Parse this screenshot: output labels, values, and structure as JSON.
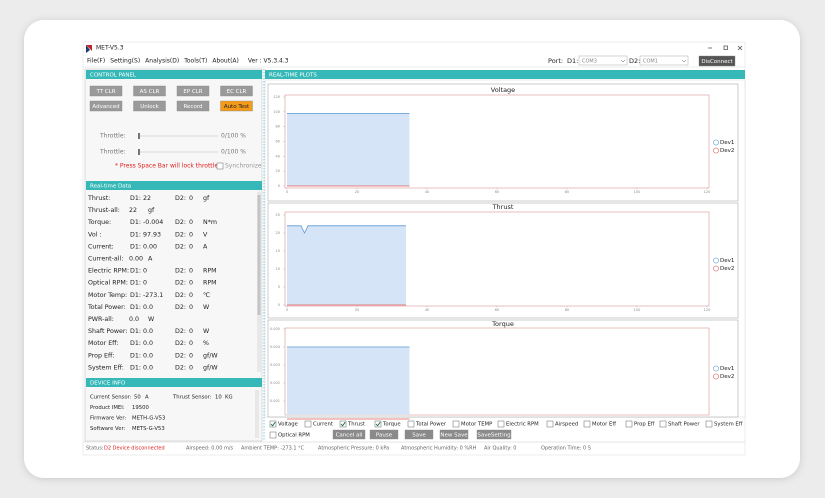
{
  "window": {
    "title": "MET-V5.3"
  },
  "menu": {
    "items": [
      "File(F)",
      "Setting(S)",
      "Analysis(D)",
      "Tools(T)",
      "About(A)"
    ],
    "version": "Ver : V5.3.4.3",
    "port_label": "Port:",
    "d1_label": "D1:",
    "d1_port": "COM3",
    "d2_label": "D2:",
    "d2_port": "COM1",
    "disconnect": "DisConnect"
  },
  "control_panel": {
    "title": "CONTROL PANEL",
    "buttons": [
      {
        "label": "TT CLR"
      },
      {
        "label": "AS CLR"
      },
      {
        "label": "EP CLR"
      },
      {
        "label": "EC CLR"
      },
      {
        "label": "Advanced"
      },
      {
        "label": "Unlock"
      },
      {
        "label": "Record"
      },
      {
        "label": "Auto Test",
        "highlight": true
      }
    ],
    "throttle": [
      {
        "label": "Throttle:",
        "value": "0/100 %"
      },
      {
        "label": "Throttle:",
        "value": "0/100 %"
      }
    ],
    "warning": "* Press Space Bar will lock throttle",
    "sync": "Synchronize"
  },
  "realtime_data": {
    "title": "Real-time Data",
    "rows": [
      [
        "Thrust:",
        "D1:",
        "22",
        "D2:",
        "0",
        "gf"
      ],
      [
        "Thrust-all:",
        "22",
        "gf"
      ],
      [
        "Torque:",
        "D1:",
        "-0.004",
        "D2:",
        "0",
        "N*m"
      ],
      [
        "Vol :",
        "D1:",
        "97.93",
        "D2:",
        "0",
        "V"
      ],
      [
        "Current:",
        "D1:",
        "0.00",
        "D2:",
        "0",
        "A"
      ],
      [
        "Current-all:",
        "0.00",
        "A"
      ],
      [
        "Electric RPM:",
        "D1:",
        "0",
        "D2:",
        "0",
        "RPM"
      ],
      [
        "Optical RPM:",
        "D1:",
        "0",
        "D2:",
        "0",
        "RPM"
      ],
      [
        "Motor Temp:",
        "D1:",
        "-273.1",
        "D2:",
        "0",
        "℃"
      ],
      [
        "Total Power:",
        "D1:",
        "0.0",
        "D2:",
        "0",
        "W"
      ],
      [
        "PWR-all:",
        "0.0",
        "W"
      ],
      [
        "Shaft Power:",
        "D1:",
        "0.0",
        "D2:",
        "0",
        "W"
      ],
      [
        "Motor Eff:",
        "D1:",
        "0.0",
        "D2:",
        "0",
        "%"
      ],
      [
        "Prop Eff:",
        "D1:",
        "0.0",
        "D2:",
        "0",
        "gf/W"
      ],
      [
        "System Eff:",
        "D1:",
        "0.0",
        "D2:",
        "0",
        "gf/W"
      ]
    ]
  },
  "device_info": {
    "title": "DEVICE INFO",
    "rows": [
      [
        "Current Sensor:",
        "50",
        "A",
        "Thrust Sensor:",
        "10",
        "KG"
      ],
      [
        "Product IMEI:",
        "19500"
      ],
      [
        "Firmware Ver:",
        "METH-G-V53"
      ],
      [
        "Software Ver:",
        "METS-G-V53"
      ]
    ]
  },
  "plots": {
    "title": "REAL-TIME PLOTS",
    "charts": [
      {
        "type": "line",
        "title": "Voltage",
        "xlim": [
          0,
          120
        ],
        "xticks": [
          0,
          20,
          40,
          60,
          80,
          100,
          120
        ],
        "ylim": [
          0,
          120
        ],
        "yticks": [
          0,
          20,
          40,
          60,
          80,
          100,
          120
        ],
        "series": [
          {
            "name": "Dev1",
            "color": "#5b9bd5",
            "x": [
              0,
              35
            ],
            "values": [
              97.93,
              97.93
            ]
          },
          {
            "name": "Dev2",
            "color": "#e05a5a",
            "x": [
              0,
              35
            ],
            "values": [
              0,
              0
            ]
          }
        ]
      },
      {
        "type": "line",
        "title": "Thrust",
        "xlim": [
          0,
          120
        ],
        "xticks": [
          0,
          20,
          40,
          60,
          80,
          100,
          120
        ],
        "ylim": [
          0,
          25
        ],
        "yticks": [
          0,
          5,
          10,
          15,
          20,
          25
        ],
        "series": [
          {
            "name": "Dev1",
            "color": "#5b9bd5",
            "x": [
              0,
              4,
              5,
              6,
              34
            ],
            "values": [
              22,
              22,
              20,
              22,
              22
            ]
          },
          {
            "name": "Dev2",
            "color": "#e05a5a",
            "x": [
              0,
              34
            ],
            "values": [
              0,
              0
            ]
          }
        ]
      },
      {
        "type": "line",
        "title": "Torque",
        "xlim": [
          0,
          120
        ],
        "ylim": [
          0,
          0.005
        ],
        "yticks": [
          0.001,
          0.002,
          0.003,
          0.004,
          0.005
        ],
        "series": [
          {
            "name": "Dev1",
            "color": "#5b9bd5",
            "x": [
              0,
              35
            ],
            "values": [
              0.004,
              0.004
            ]
          },
          {
            "name": "Dev2",
            "color": "#e05a5a",
            "x": [
              0,
              35
            ],
            "values": [
              0,
              0
            ]
          }
        ]
      }
    ]
  },
  "checkboxes": [
    {
      "label": "Voltage",
      "checked": true
    },
    {
      "label": "Current",
      "checked": false
    },
    {
      "label": "Thrust",
      "checked": true
    },
    {
      "label": "Torque",
      "checked": true
    },
    {
      "label": "Total Power",
      "checked": false
    },
    {
      "label": "Motor TEMP",
      "checked": false
    },
    {
      "label": "Electric RPM",
      "checked": false
    },
    {
      "label": "Airspeed",
      "checked": false
    },
    {
      "label": "Motor Eff",
      "checked": false
    },
    {
      "label": "Prop Eff",
      "checked": false
    },
    {
      "label": "Shaft Power",
      "checked": false
    },
    {
      "label": "System Eff",
      "checked": false
    },
    {
      "label": "Optical RPM",
      "checked": false
    }
  ],
  "action_buttons": [
    "Cancel all",
    "Pause",
    "Save",
    "New Save",
    "SaveSetting"
  ],
  "status": {
    "label": "Status:",
    "message": "D2 Device disconnected",
    "items": [
      "Airspeed: 0.00 m/s",
      "Ambient TEMP: -273.1 °C",
      "Atmospheric Pressure: 0 kPa",
      "Atmospheric Humidity: 0 %RH",
      "Air Quality: 0",
      "Operation Time: 0 S"
    ]
  }
}
